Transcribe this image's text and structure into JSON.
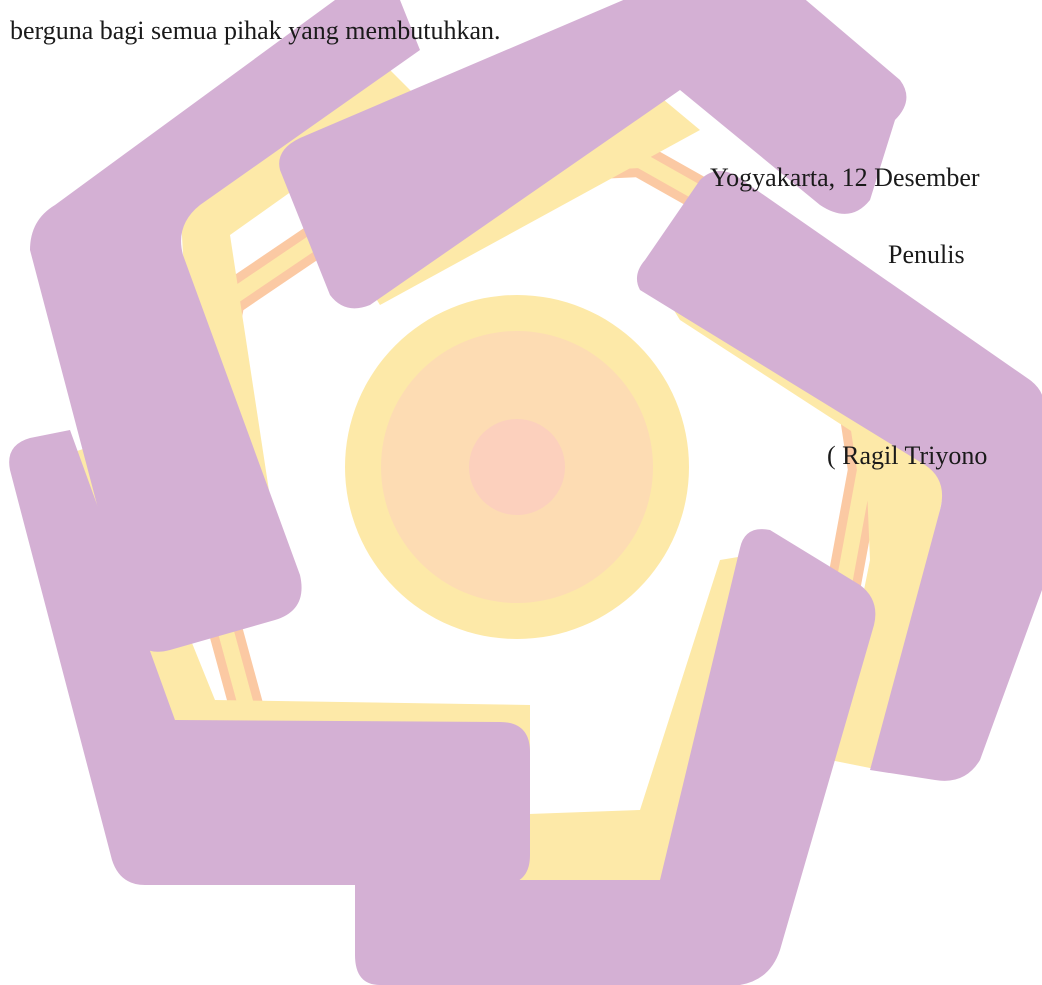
{
  "document": {
    "closing_line": "berguna bagi semua pihak yang membutuhkan.",
    "place_date": "Yogyakarta, 12 Desember",
    "role": "Penulis",
    "author": "( Ragil Triyono"
  },
  "watermark": {
    "icon": "institution-logo-icon",
    "colors": {
      "purple": "#d4b0d4",
      "yellow": "#fde9a8",
      "orange": "#fcc9a4",
      "center": "#fdd7bd"
    }
  }
}
